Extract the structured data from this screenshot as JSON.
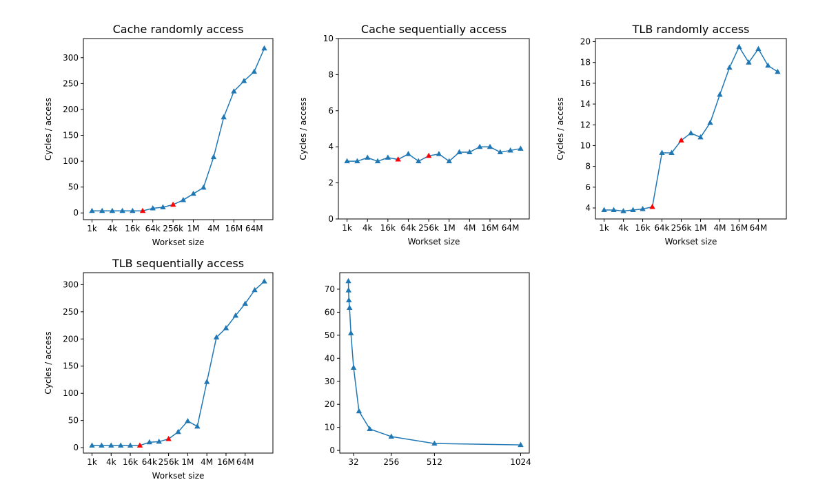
{
  "chart_data": [
    {
      "type": "line",
      "title": "Cache randomly access",
      "x_label": "Workset size",
      "y_label": "Cycles / access",
      "categories": [
        "1k",
        null,
        "4k",
        null,
        "16k",
        null,
        "64k",
        null,
        "256k",
        null,
        "1M",
        null,
        "4M",
        null,
        "16M",
        null,
        "64M",
        null
      ],
      "series": [
        {
          "color": "#1f77b4",
          "marker": "triangle",
          "marker_colors": [
            "#1f77b4",
            "#1f77b4",
            "#1f77b4",
            "#1f77b4",
            "#1f77b4",
            "red",
            "#1f77b4",
            "#1f77b4",
            "red",
            "#1f77b4",
            "#1f77b4",
            "#1f77b4",
            "#1f77b4",
            "#1f77b4",
            "#1f77b4",
            "#1f77b4",
            "#1f77b4",
            "#1f77b4"
          ],
          "values": [
            4,
            4,
            4,
            4,
            4,
            4,
            9,
            11,
            16,
            25,
            37,
            49,
            108,
            185,
            235,
            255,
            273,
            318
          ]
        }
      ],
      "ylim": [
        -13,
        337
      ],
      "yticks": [
        0,
        50,
        100,
        150,
        200,
        250,
        300
      ]
    },
    {
      "type": "line",
      "title": "Cache sequentially access",
      "x_label": "Workset size",
      "y_label": "Cycles / access",
      "categories": [
        "1k",
        null,
        "4k",
        null,
        "16k",
        null,
        "64k",
        null,
        "256k",
        null,
        "1M",
        null,
        "4M",
        null,
        "16M",
        null,
        "64M",
        null
      ],
      "series": [
        {
          "color": "#1f77b4",
          "marker": "triangle",
          "marker_colors": [
            "#1f77b4",
            "#1f77b4",
            "#1f77b4",
            "#1f77b4",
            "#1f77b4",
            "red",
            "#1f77b4",
            "#1f77b4",
            "red",
            "#1f77b4",
            "#1f77b4",
            "#1f77b4",
            "#1f77b4",
            "#1f77b4",
            "#1f77b4",
            "#1f77b4",
            "#1f77b4",
            "#1f77b4"
          ],
          "values": [
            3.2,
            3.2,
            3.4,
            3.2,
            3.4,
            3.3,
            3.6,
            3.2,
            3.5,
            3.6,
            3.2,
            3.7,
            3.7,
            4.0,
            4.0,
            3.7,
            3.8,
            3.9
          ]
        }
      ],
      "ylim": [
        0,
        10
      ],
      "yticks": [
        0,
        2,
        4,
        6,
        8,
        10
      ]
    },
    {
      "type": "line",
      "title": "TLB randomly access",
      "x_label": "Workset size",
      "y_label": "Cycles / access",
      "categories": [
        "1k",
        null,
        "4k",
        null,
        "16k",
        null,
        "64k",
        null,
        "256k",
        null,
        "1M",
        null,
        "4M",
        null,
        "16M",
        null,
        "64M",
        null,
        null
      ],
      "series": [
        {
          "color": "#1f77b4",
          "marker": "triangle",
          "marker_colors": [
            "#1f77b4",
            "#1f77b4",
            "#1f77b4",
            "#1f77b4",
            "#1f77b4",
            "red",
            "#1f77b4",
            "#1f77b4",
            "red",
            "#1f77b4",
            "#1f77b4",
            "#1f77b4",
            "#1f77b4",
            "#1f77b4",
            "#1f77b4",
            "#1f77b4",
            "#1f77b4",
            "#1f77b4",
            "#1f77b4"
          ],
          "values": [
            3.8,
            3.8,
            3.7,
            3.8,
            3.9,
            4.1,
            9.3,
            9.3,
            10.5,
            11.2,
            10.8,
            12.2,
            14.9,
            17.5,
            19.5,
            18.0,
            19.3,
            17.7,
            17.1
          ]
        }
      ],
      "ylim": [
        2.94,
        20.3
      ],
      "yticks": [
        4,
        6,
        8,
        10,
        12,
        14,
        16,
        18,
        20
      ]
    },
    {
      "type": "line",
      "title": "TLB sequentially access",
      "x_label": "Workset size",
      "y_label": "Cycles / access",
      "categories": [
        "1k",
        null,
        "4k",
        null,
        "16k",
        null,
        "64k",
        null,
        "256k",
        null,
        "1M",
        null,
        "4M",
        null,
        "16M",
        null,
        "64M",
        null,
        null
      ],
      "series": [
        {
          "color": "#1f77b4",
          "marker": "triangle",
          "marker_colors": [
            "#1f77b4",
            "#1f77b4",
            "#1f77b4",
            "#1f77b4",
            "#1f77b4",
            "red",
            "#1f77b4",
            "#1f77b4",
            "red",
            "#1f77b4",
            "#1f77b4",
            "#1f77b4",
            "#1f77b4",
            "#1f77b4",
            "#1f77b4",
            "#1f77b4",
            "#1f77b4",
            "#1f77b4",
            "#1f77b4"
          ],
          "values": [
            4,
            4,
            4,
            4,
            4,
            4,
            10,
            11,
            16,
            29,
            49,
            39,
            121,
            203,
            220,
            243,
            265,
            290,
            306
          ]
        }
      ],
      "ylim": [
        -10,
        322
      ],
      "yticks": [
        0,
        50,
        100,
        150,
        200,
        250,
        300
      ]
    },
    {
      "type": "line",
      "x": [
        1,
        2,
        4,
        8,
        16,
        32,
        64,
        128,
        256,
        512,
        1024
      ],
      "series": [
        {
          "color": "#1f77b4",
          "marker": "triangle",
          "values": [
            73.5,
            69.5,
            65.2,
            61.9,
            50.9,
            35.9,
            17.0,
            9.3,
            6.0,
            3.0,
            2.4
          ]
        }
      ],
      "xlim": [
        -50.15,
        1075.15
      ],
      "xticks": [
        32,
        256,
        512,
        1024
      ],
      "ylim": [
        -1.16,
        77.16
      ],
      "yticks": [
        0,
        10,
        20,
        30,
        40,
        50,
        60,
        70
      ]
    }
  ]
}
